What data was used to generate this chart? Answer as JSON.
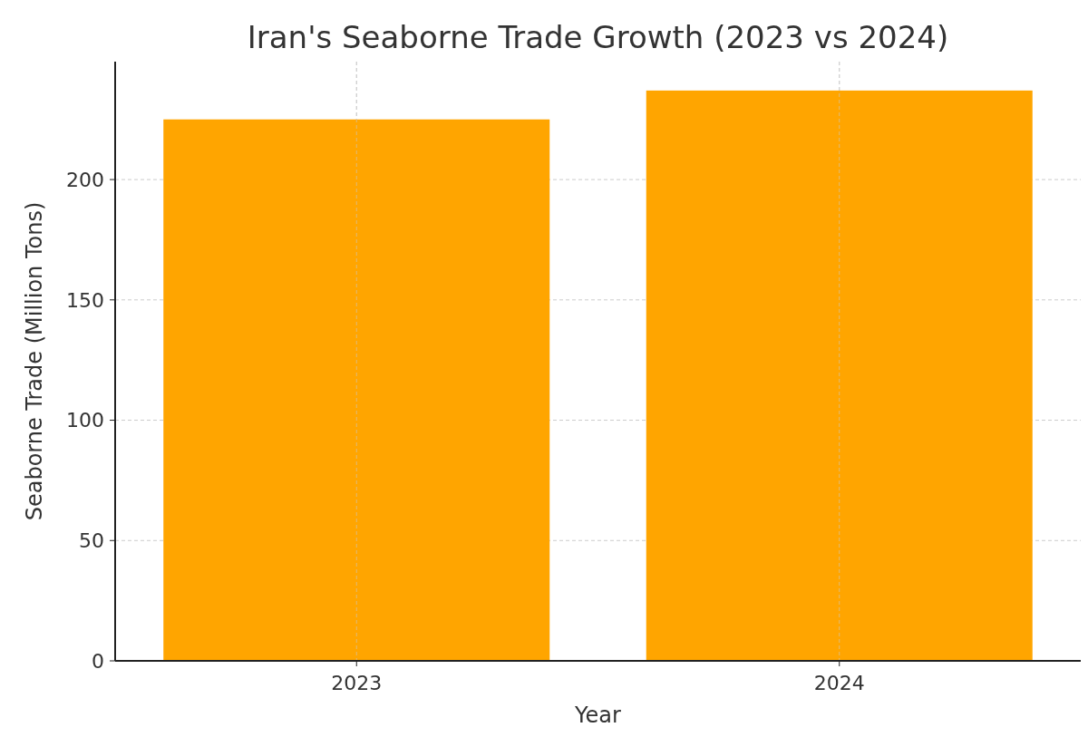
{
  "chart_data": {
    "type": "bar",
    "title": "Iran's Seaborne Trade Growth (2023 vs 2024)",
    "xlabel": "Year",
    "ylabel": "Seaborne Trade (Million Tons)",
    "categories": [
      "2023",
      "2024"
    ],
    "values": [
      225,
      237
    ],
    "color": "#ffa500",
    "ylim": [
      0,
      249
    ],
    "yticks": [
      0,
      50,
      100,
      150,
      200
    ],
    "grid": true
  }
}
